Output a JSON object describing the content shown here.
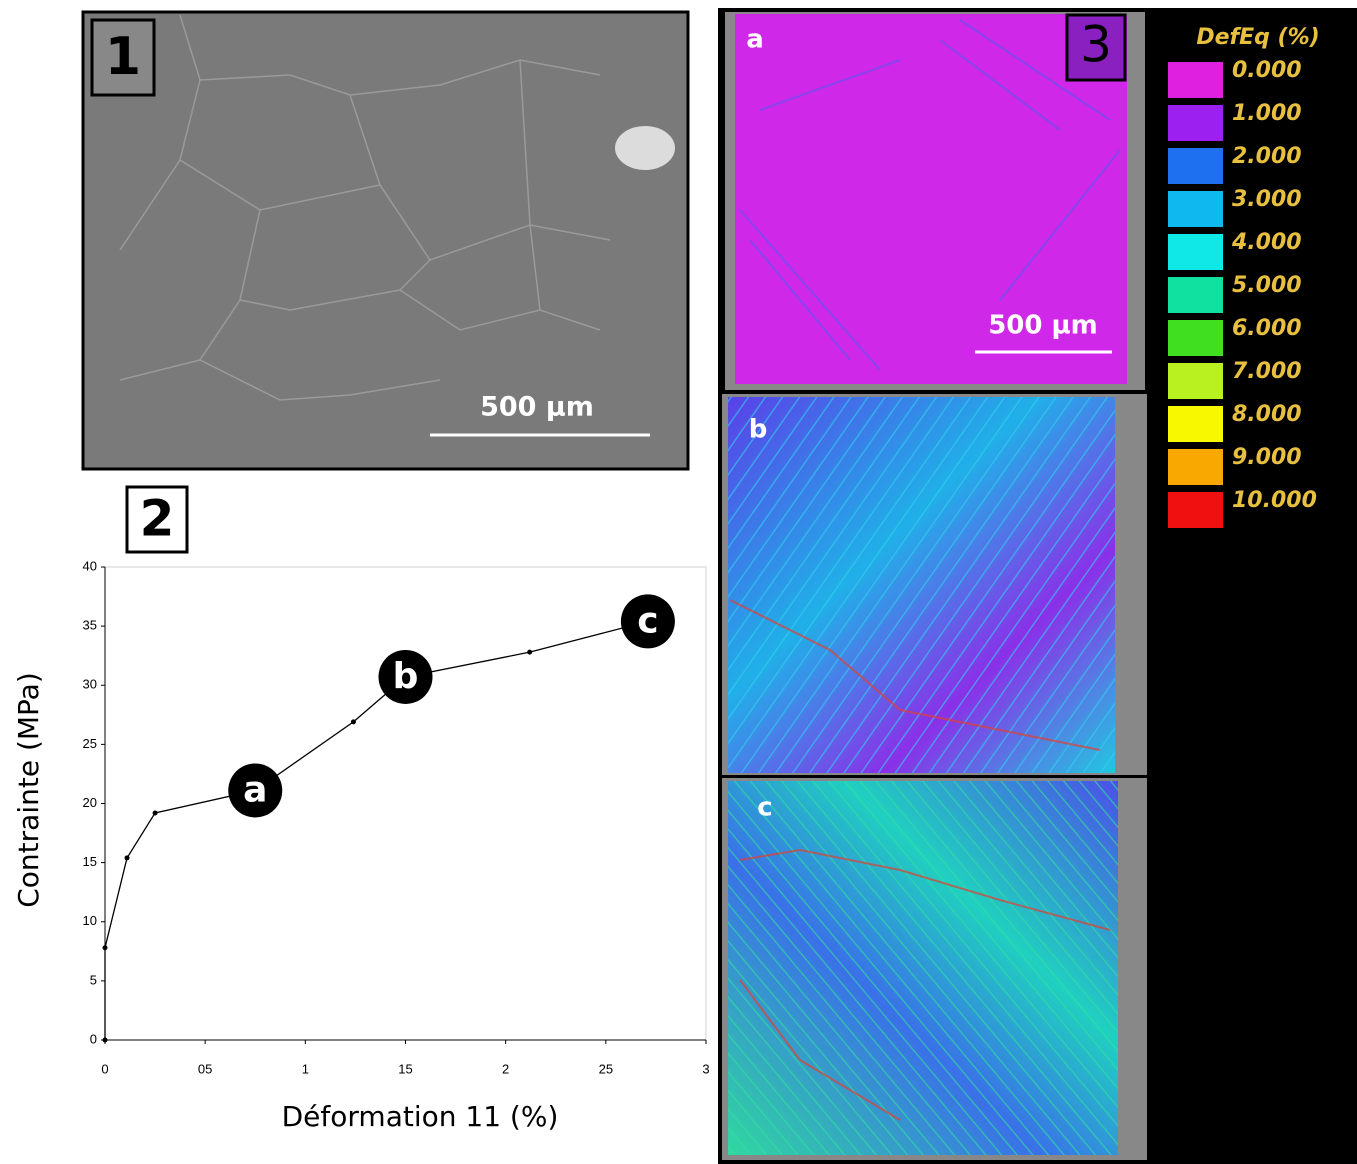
{
  "panels": {
    "sem": {
      "label": "1",
      "scale_bar": "500 µm"
    },
    "chart_label": "2",
    "maps": {
      "label": "3",
      "scale_bar": "500 µm",
      "names": [
        "a",
        "b",
        "c"
      ]
    }
  },
  "legend": {
    "title": "DefEq (%)",
    "entries": [
      {
        "label": "0.000",
        "color": "#e020e0"
      },
      {
        "label": "1.000",
        "color": "#9c20f0"
      },
      {
        "label": "2.000",
        "color": "#1e70f0"
      },
      {
        "label": "3.000",
        "color": "#10b8f0"
      },
      {
        "label": "4.000",
        "color": "#10e8e8"
      },
      {
        "label": "5.000",
        "color": "#10e0a0"
      },
      {
        "label": "6.000",
        "color": "#40e020"
      },
      {
        "label": "7.000",
        "color": "#b8f020"
      },
      {
        "label": "8.000",
        "color": "#f8f800"
      },
      {
        "label": "9.000",
        "color": "#f8a800"
      },
      {
        "label": "10.000",
        "color": "#f01010"
      }
    ]
  },
  "chart_data": {
    "type": "line",
    "x_label": "Déformation 11 (%)",
    "y_label": "Contrainte (MPa)",
    "x": [
      0,
      0,
      0.11,
      0.25,
      0.75,
      1.24,
      1.5,
      2.12,
      2.71
    ],
    "values": [
      0,
      7.8,
      15.4,
      19.2,
      21.1,
      26.9,
      30.7,
      32.8,
      35.4
    ],
    "color": "#000000",
    "annotations": [
      {
        "text": "a",
        "x": 0.75,
        "y": 21.1
      },
      {
        "text": "b",
        "x": 1.5,
        "y": 30.7
      },
      {
        "text": "c",
        "x": 2.71,
        "y": 35.4
      }
    ],
    "xlim": [
      0,
      3
    ],
    "ylim": [
      0,
      40
    ],
    "xticks": [
      0,
      {
        "value": 0.5,
        "label": "05"
      },
      1,
      {
        "value": 1.5,
        "label": "15"
      },
      2,
      {
        "value": 2.5,
        "label": "25"
      },
      3
    ],
    "yticks": [
      0,
      5,
      10,
      15,
      20,
      25,
      30,
      35,
      40
    ]
  }
}
